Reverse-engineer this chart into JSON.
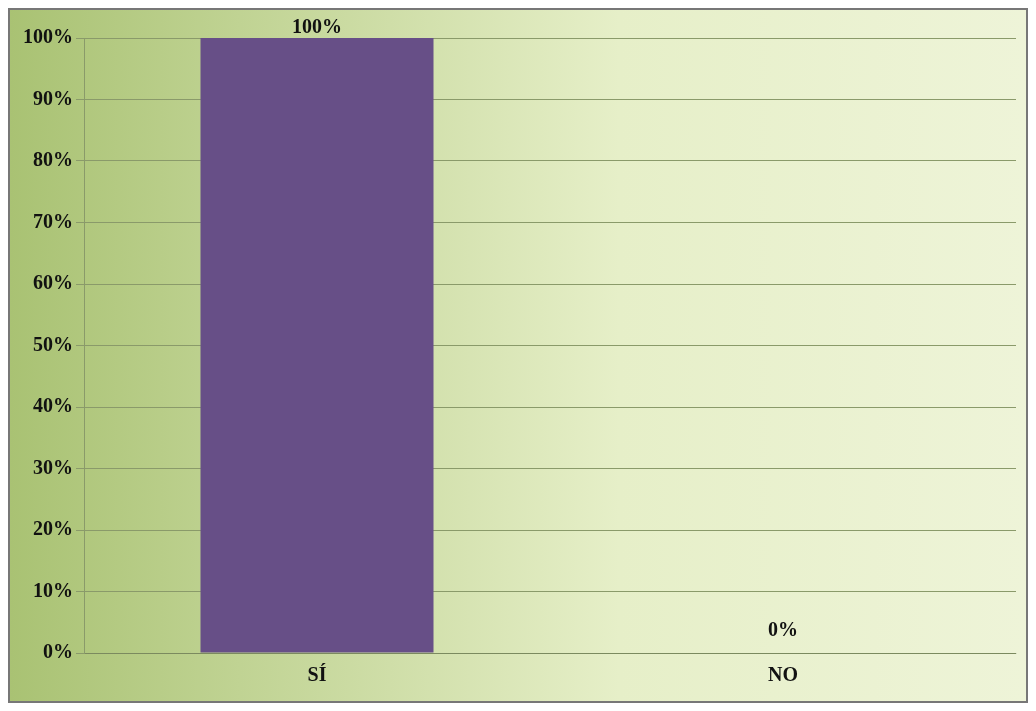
{
  "chart_data": {
    "type": "bar",
    "categories": [
      "SÍ",
      "NO"
    ],
    "values": [
      100,
      0
    ],
    "color": "#674f87",
    "value_labels": [
      "100%",
      "0%"
    ],
    "ylim": [
      0,
      100
    ],
    "yticks": [
      {
        "value": 0,
        "label": "0%"
      },
      {
        "value": 10,
        "label": "10%"
      },
      {
        "value": 20,
        "label": "20%"
      },
      {
        "value": 30,
        "label": "30%"
      },
      {
        "value": 40,
        "label": "40%"
      },
      {
        "value": 50,
        "label": "50%"
      },
      {
        "value": 60,
        "label": "60%"
      },
      {
        "value": 70,
        "label": "70%"
      },
      {
        "value": 80,
        "label": "80%"
      },
      {
        "value": 90,
        "label": "90%"
      },
      {
        "value": 100,
        "label": "100%"
      }
    ],
    "grid": "y",
    "legend": false
  }
}
